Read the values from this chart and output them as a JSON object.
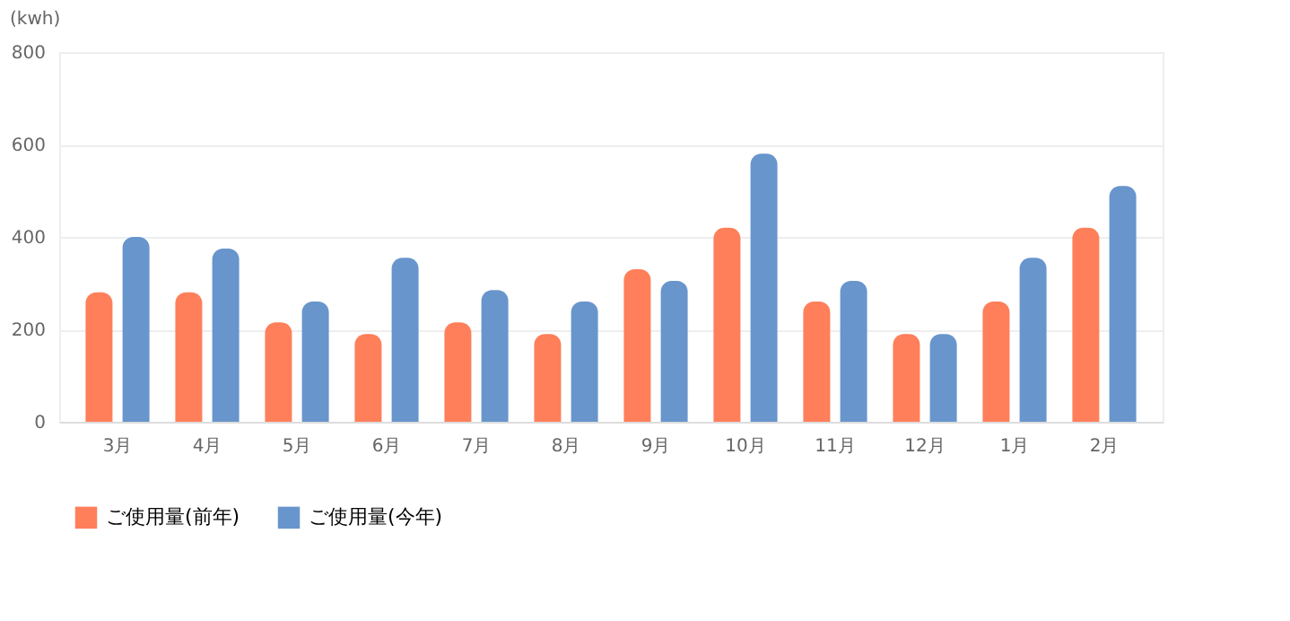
{
  "chart_data": {
    "type": "bar",
    "ylabel": "(kwh)",
    "categories": [
      "3月",
      "4月",
      "5月",
      "6月",
      "7月",
      "8月",
      "9月",
      "10月",
      "11月",
      "12月",
      "1月",
      "2月"
    ],
    "series": [
      {
        "name": "ご使用量(前年)",
        "color": "#fe7f5a",
        "values": [
          280,
          280,
          215,
          190,
          215,
          190,
          330,
          420,
          260,
          190,
          260,
          420
        ]
      },
      {
        "name": "ご使用量(今年)",
        "color": "#6895cc",
        "values": [
          400,
          375,
          260,
          355,
          285,
          260,
          305,
          580,
          305,
          190,
          355,
          510
        ]
      }
    ],
    "ylim": [
      0,
      800
    ],
    "yticks": [
      0,
      200,
      400,
      600,
      800
    ],
    "grid": "y",
    "legend": "bottom"
  }
}
